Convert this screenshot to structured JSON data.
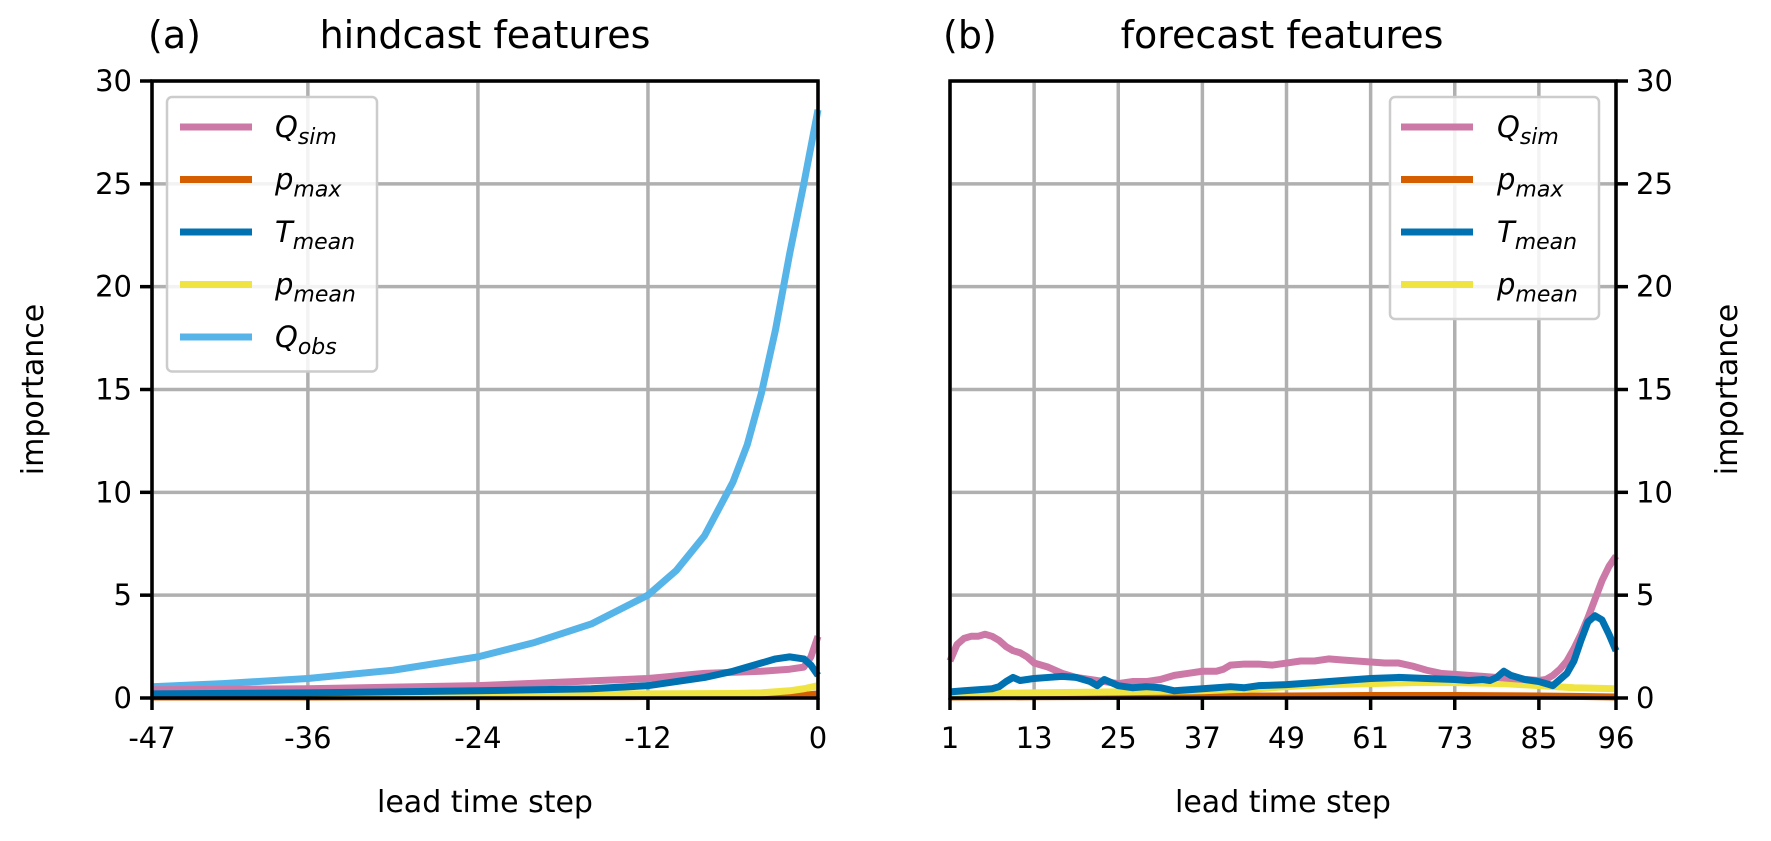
{
  "colors": {
    "Q_sim": "#cc79a7",
    "p_max": "#d55e00",
    "T_mean": "#0072b2",
    "p_mean": "#f0e442",
    "Q_obs": "#56b4e9"
  },
  "chart_data": [
    {
      "type": "line",
      "panel_label": "(a)",
      "title": "hindcast features",
      "xlabel": "lead time step",
      "ylabel": "importance",
      "xlim": [
        -47,
        0
      ],
      "ylim": [
        0,
        30
      ],
      "xticks": [
        -47,
        -36,
        -24,
        -12,
        0
      ],
      "yticks": [
        0,
        5,
        10,
        15,
        20,
        25,
        30
      ],
      "ytick_side": "left",
      "grid": true,
      "legend_position": "top-left",
      "legend": [
        {
          "key": "Q_sim",
          "base": "Q",
          "sub": "sim"
        },
        {
          "key": "p_max",
          "base": "p",
          "sub": "max"
        },
        {
          "key": "T_mean",
          "base": "T",
          "sub": "mean"
        },
        {
          "key": "p_mean",
          "base": "p",
          "sub": "mean"
        },
        {
          "key": "Q_obs",
          "base": "Q",
          "sub": "obs"
        }
      ],
      "series": [
        {
          "key": "p_max",
          "x": [
            -47,
            -36,
            -24,
            -12,
            -4,
            -2,
            -1,
            0
          ],
          "y": [
            0.05,
            0.05,
            0.06,
            0.07,
            0.08,
            0.1,
            0.13,
            0.2
          ]
        },
        {
          "key": "p_mean",
          "x": [
            -47,
            -36,
            -24,
            -12,
            -6,
            -4,
            -2,
            -1,
            0
          ],
          "y": [
            0.15,
            0.16,
            0.18,
            0.2,
            0.22,
            0.25,
            0.35,
            0.45,
            0.6
          ]
        },
        {
          "key": "Q_sim",
          "x": [
            -47,
            -36,
            -24,
            -12,
            -8,
            -4,
            -2,
            -1,
            -0.5,
            0
          ],
          "y": [
            0.4,
            0.45,
            0.6,
            0.95,
            1.2,
            1.3,
            1.4,
            1.5,
            2.0,
            3.0
          ]
        },
        {
          "key": "T_mean",
          "x": [
            -47,
            -36,
            -24,
            -16,
            -12,
            -8,
            -6,
            -4,
            -3,
            -2,
            -1,
            -0.5,
            0
          ],
          "y": [
            0.2,
            0.25,
            0.35,
            0.45,
            0.6,
            1.0,
            1.3,
            1.7,
            1.9,
            2.0,
            1.9,
            1.6,
            1.1
          ]
        },
        {
          "key": "Q_obs",
          "x": [
            -47,
            -42,
            -36,
            -30,
            -24,
            -20,
            -16,
            -12,
            -10,
            -8,
            -6,
            -5,
            -4,
            -3,
            -2,
            -1,
            0
          ],
          "y": [
            0.55,
            0.7,
            0.95,
            1.35,
            2.0,
            2.7,
            3.6,
            5.0,
            6.2,
            7.9,
            10.5,
            12.3,
            14.8,
            17.9,
            21.6,
            25.0,
            28.6
          ]
        }
      ]
    },
    {
      "type": "line",
      "panel_label": "(b)",
      "title": "forecast features",
      "xlabel": "lead time step",
      "ylabel": "importance",
      "xlim": [
        1,
        96
      ],
      "ylim": [
        0,
        30
      ],
      "xticks": [
        1,
        13,
        25,
        37,
        49,
        61,
        73,
        85,
        96
      ],
      "yticks": [
        0,
        5,
        10,
        15,
        20,
        25,
        30
      ],
      "ytick_side": "right",
      "grid": true,
      "legend_position": "top-right",
      "legend": [
        {
          "key": "Q_sim",
          "base": "Q",
          "sub": "sim"
        },
        {
          "key": "p_max",
          "base": "p",
          "sub": "max"
        },
        {
          "key": "T_mean",
          "base": "T",
          "sub": "mean"
        },
        {
          "key": "p_mean",
          "base": "p",
          "sub": "mean"
        }
      ],
      "series": [
        {
          "key": "p_max",
          "x": [
            1,
            13,
            25,
            37,
            49,
            61,
            73,
            85,
            90,
            96
          ],
          "y": [
            0.05,
            0.06,
            0.07,
            0.08,
            0.1,
            0.12,
            0.12,
            0.1,
            0.08,
            0.05
          ]
        },
        {
          "key": "p_mean",
          "x": [
            1,
            13,
            25,
            37,
            45,
            49,
            55,
            61,
            67,
            73,
            80,
            85,
            90,
            96
          ],
          "y": [
            0.2,
            0.25,
            0.3,
            0.35,
            0.45,
            0.55,
            0.65,
            0.7,
            0.75,
            0.75,
            0.7,
            0.6,
            0.5,
            0.45
          ]
        },
        {
          "key": "Q_sim",
          "x": [
            1,
            2,
            3,
            4,
            5,
            6,
            7,
            8,
            9,
            10,
            11,
            12,
            13,
            15,
            17,
            19,
            21,
            23,
            25,
            27,
            29,
            31,
            33,
            35,
            37,
            39,
            40,
            41,
            43,
            45,
            47,
            49,
            51,
            53,
            55,
            57,
            59,
            61,
            63,
            65,
            67,
            69,
            71,
            73,
            75,
            77,
            79,
            81,
            83,
            85,
            86,
            87,
            88,
            89,
            90,
            91,
            92,
            93,
            94,
            95,
            96
          ],
          "y": [
            1.8,
            2.6,
            2.9,
            3.0,
            3.0,
            3.1,
            3.0,
            2.8,
            2.5,
            2.3,
            2.2,
            2.0,
            1.7,
            1.5,
            1.2,
            1.0,
            0.9,
            0.8,
            0.7,
            0.8,
            0.8,
            0.9,
            1.1,
            1.2,
            1.3,
            1.3,
            1.4,
            1.6,
            1.65,
            1.65,
            1.6,
            1.7,
            1.8,
            1.8,
            1.9,
            1.85,
            1.8,
            1.75,
            1.7,
            1.7,
            1.55,
            1.35,
            1.2,
            1.15,
            1.1,
            1.05,
            1.0,
            0.95,
            0.9,
            0.85,
            0.9,
            1.1,
            1.4,
            1.8,
            2.4,
            3.1,
            3.9,
            4.8,
            5.7,
            6.4,
            6.9
          ]
        },
        {
          "key": "T_mean",
          "x": [
            1,
            3,
            5,
            7,
            8,
            9,
            10,
            11,
            12,
            13,
            15,
            17,
            19,
            21,
            22,
            23,
            24,
            25,
            27,
            29,
            31,
            33,
            35,
            37,
            39,
            41,
            43,
            45,
            49,
            53,
            57,
            61,
            65,
            69,
            73,
            75,
            77,
            78,
            79,
            80,
            81,
            82,
            83,
            84,
            85,
            87,
            88,
            89,
            90,
            91,
            92,
            93,
            94,
            95,
            96
          ],
          "y": [
            0.3,
            0.35,
            0.4,
            0.45,
            0.55,
            0.8,
            1.0,
            0.85,
            0.9,
            0.95,
            1.0,
            1.05,
            1.0,
            0.8,
            0.6,
            0.9,
            0.75,
            0.6,
            0.5,
            0.55,
            0.5,
            0.35,
            0.4,
            0.45,
            0.5,
            0.55,
            0.5,
            0.6,
            0.65,
            0.75,
            0.85,
            0.95,
            1.0,
            0.95,
            0.9,
            0.85,
            0.9,
            0.85,
            1.0,
            1.3,
            1.1,
            1.0,
            0.9,
            0.85,
            0.8,
            0.6,
            0.9,
            1.2,
            1.8,
            2.8,
            3.7,
            4.0,
            3.8,
            3.1,
            2.3
          ]
        }
      ]
    }
  ]
}
